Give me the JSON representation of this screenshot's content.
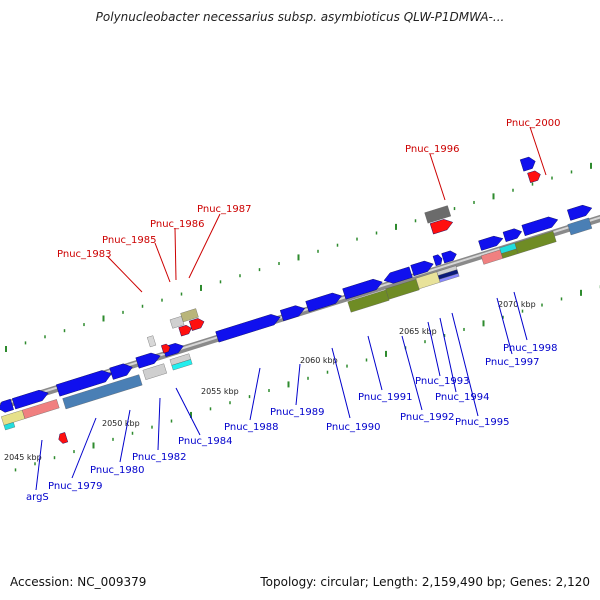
{
  "title": "Polynucleobacter necessarius subsp. asymbioticus QLW-P1DMWA-...",
  "footer": {
    "accession": "Accession: NC_009379",
    "summary": "Topology: circular; Length: 2,159,490 bp; Genes: 2,120"
  },
  "colors": {
    "forward_gene": "#0000ee",
    "rna": "#ff2020",
    "feature_label_top": "#cc0000",
    "feature_label_bottom": "#0000cc",
    "axis": "#9a9a9a",
    "ticks": "#2e8b2e"
  },
  "scale_labels": [
    "2045 kbp",
    "2050 kbp",
    "2055 kbp",
    "2060 kbp",
    "2065 kbp",
    "2070 kbp"
  ],
  "gene_labels_top": [
    "Pnuc_1983",
    "Pnuc_1985",
    "Pnuc_1986",
    "Pnuc_1987",
    "Pnuc_1996",
    "Pnuc_2000"
  ],
  "gene_labels_bottom": [
    "argS",
    "Pnuc_1979",
    "Pnuc_1980",
    "Pnuc_1982",
    "Pnuc_1984",
    "Pnuc_1988",
    "Pnuc_1989",
    "Pnuc_1990",
    "Pnuc_1991",
    "Pnuc_1992",
    "Pnuc_1993",
    "Pnuc_1994",
    "Pnuc_1995",
    "Pnuc_1997",
    "Pnuc_1998"
  ]
}
